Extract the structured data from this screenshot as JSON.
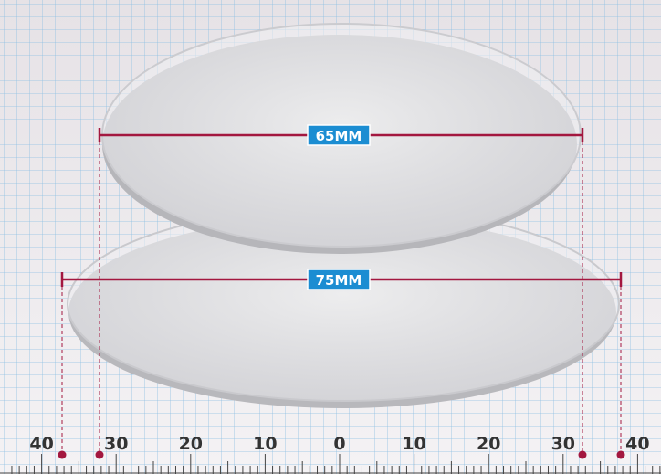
{
  "dimensions": [
    {
      "label": "65MM"
    },
    {
      "label": "75MM"
    }
  ],
  "ruler": {
    "labels": [
      "40",
      "30",
      "20",
      "10",
      "0",
      "10",
      "20",
      "30",
      "40"
    ]
  }
}
